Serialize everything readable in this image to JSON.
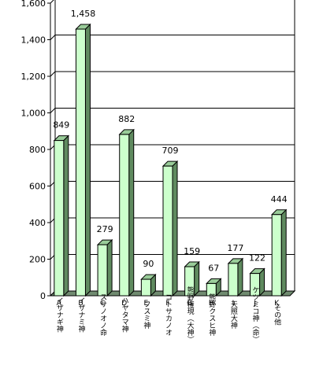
{
  "chart_data": {
    "type": "bar",
    "title": "",
    "xlabel": "",
    "ylabel": "",
    "ylim": [
      0,
      1600
    ],
    "y_ticks": [
      "0",
      "200",
      "400",
      "600",
      "800",
      "1,000",
      "1,200",
      "1,400",
      "1,600"
    ],
    "grid": true,
    "style": "3d-columns",
    "colors": {
      "bar_front": "#ccffcc",
      "bar_side": "#5f8a5f",
      "bar_top": "#99cc99",
      "floor": "#708b70",
      "grid": "#000000"
    },
    "categories": [
      "A",
      "B",
      "C",
      "D",
      "E",
      "F",
      "G",
      "H",
      "I",
      "J",
      "K"
    ],
    "category_names": [
      "イザナギ神",
      "イザナミ神",
      "スサノオノ命",
      "ハヤタマ神",
      "フスミ神",
      "コトサカノオ",
      "熊野権現（大神）",
      "熊野クスヒ神",
      "天照大神",
      "ケツミコ神（命）",
      "その他"
    ],
    "values": [
      849,
      1458,
      279,
      882,
      90,
      709,
      159,
      67,
      177,
      122,
      444
    ],
    "value_labels": [
      "849",
      "1,458",
      "279",
      "882",
      "90",
      "709",
      "159",
      "67",
      "177",
      "122",
      "444"
    ]
  }
}
